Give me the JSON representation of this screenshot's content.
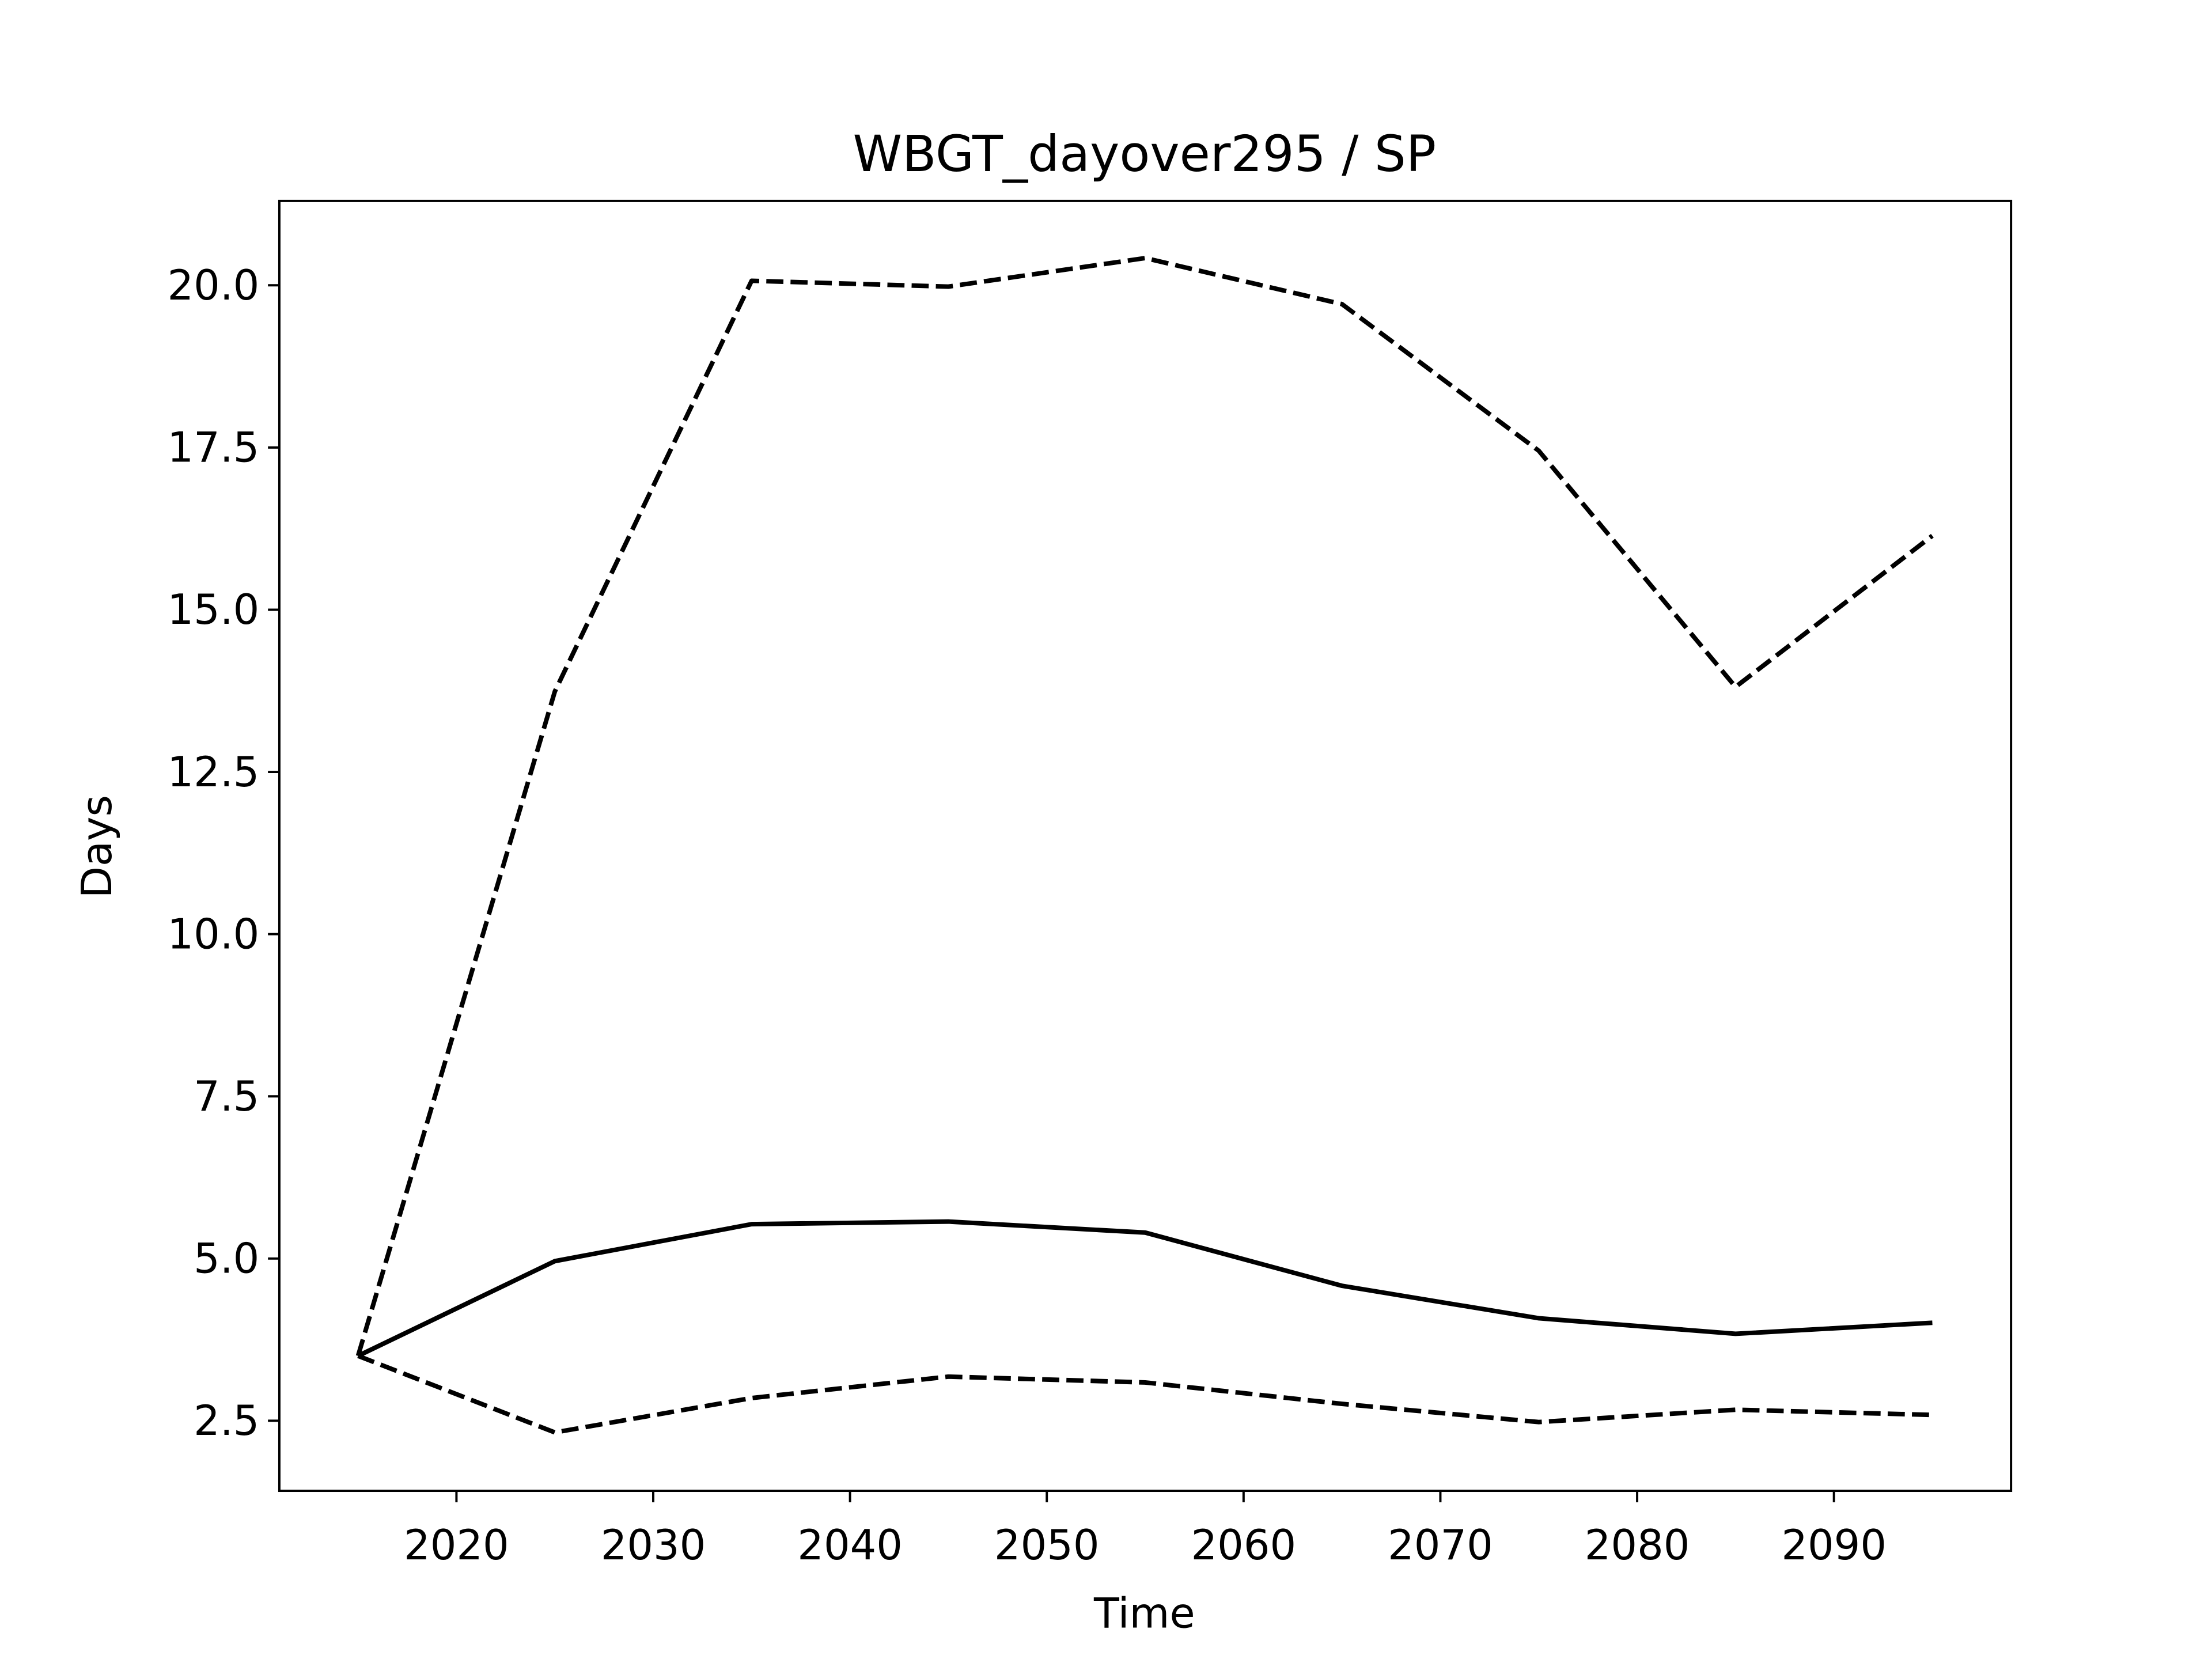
{
  "chart_data": {
    "type": "line",
    "title": "WBGT_dayover295 / SP",
    "xlabel": "Time",
    "ylabel": "Days",
    "x": [
      2015,
      2025,
      2035,
      2045,
      2055,
      2065,
      2075,
      2085,
      2095
    ],
    "series": [
      {
        "color": "#000000",
        "linestyle": "solid",
        "values": [
          3.5,
          4.96,
          5.53,
          5.57,
          5.4,
          4.58,
          4.08,
          3.84,
          4.01
        ]
      },
      {
        "color": "#000000",
        "linestyle": "dashed",
        "values": [
          3.5,
          13.74,
          20.07,
          19.98,
          20.42,
          19.71,
          17.45,
          13.81,
          16.14
        ]
      },
      {
        "color": "#000000",
        "linestyle": "dashed",
        "values": [
          3.5,
          2.32,
          2.85,
          3.18,
          3.09,
          2.76,
          2.48,
          2.67,
          2.59
        ]
      }
    ],
    "xlim": [
      2011,
      2099
    ],
    "xticks": [
      2020,
      2030,
      2040,
      2050,
      2060,
      2070,
      2080,
      2090
    ],
    "ylim": [
      1.42,
      21.3
    ],
    "yticks": [
      {
        "value": 2.5,
        "label": "2.5"
      },
      {
        "value": 5,
        "label": "5.0"
      },
      {
        "value": 7.5,
        "label": "7.5"
      },
      {
        "value": 10,
        "label": "10.0"
      },
      {
        "value": 12.5,
        "label": "12.5"
      },
      {
        "value": 15,
        "label": "15.0"
      },
      {
        "value": 17.5,
        "label": "17.5"
      },
      {
        "value": 20,
        "label": "20.0"
      }
    ],
    "grid": false
  }
}
